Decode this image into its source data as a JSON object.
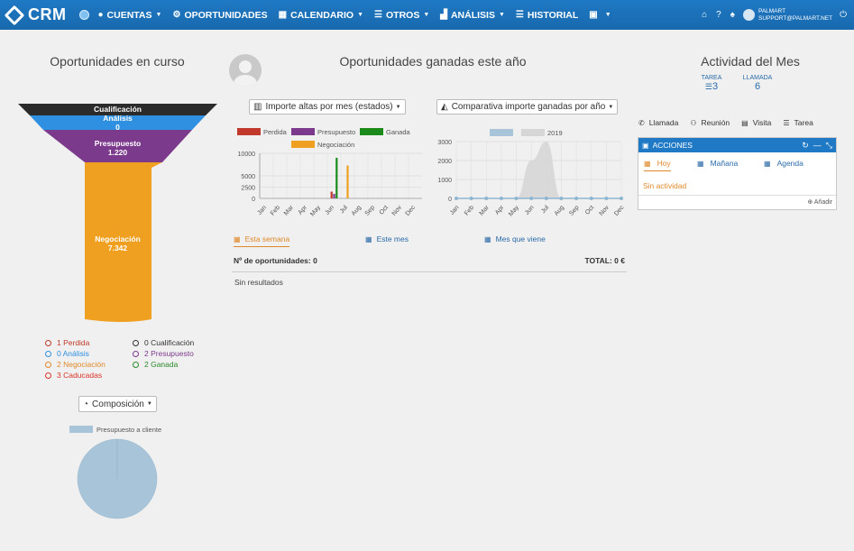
{
  "app": {
    "logo": "CRM"
  },
  "nav": {
    "items": [
      {
        "label": "CUENTAS",
        "icon": "user-icon",
        "caret": true
      },
      {
        "label": "OPORTUNIDADES",
        "icon": "gear-icon",
        "caret": false
      },
      {
        "label": "CALENDARIO",
        "icon": "calendar-icon",
        "caret": true
      },
      {
        "label": "OTROS",
        "icon": "list-icon",
        "caret": true
      },
      {
        "label": "ANÁLISIS",
        "icon": "chart-icon",
        "caret": true
      },
      {
        "label": "HISTORIAL",
        "icon": "list-icon",
        "caret": false
      }
    ],
    "user_name": "PALMART",
    "user_email": "SUPPORT@PALMART.NET"
  },
  "left": {
    "title": "Oportunidades en curso",
    "funnel": [
      {
        "name": "Cualificación",
        "value": "",
        "color": "#2b2b2b"
      },
      {
        "name": "Análisis",
        "value": "0",
        "color": "#2f8fe0"
      },
      {
        "name": "Presupuesto",
        "value": "1.220",
        "color": "#7c3a8c"
      },
      {
        "name": "Negociación",
        "value": "7.342",
        "color": "#f0a020"
      }
    ],
    "legend_left": [
      {
        "text": "1 Perdida",
        "color": "#c0392b"
      },
      {
        "text": "0 Análisis",
        "color": "#2f8fe0"
      },
      {
        "text": "2 Negociación",
        "color": "#e0892a"
      },
      {
        "text": "3 Caducadas",
        "color": "#d9342b"
      }
    ],
    "legend_right": [
      {
        "text": "0 Cualificación",
        "color": "#333333"
      },
      {
        "text": "2 Presupuesto",
        "color": "#7c3a8c"
      },
      {
        "text": "2 Ganada",
        "color": "#2a8a2a"
      }
    ],
    "composition_button": "Composición",
    "composition_legend": "Presupuesto a cliente",
    "pie": [
      {
        "name": "Presupuesto a cliente",
        "value": 1,
        "color": "#a8c4d8"
      }
    ]
  },
  "middle": {
    "title": "Oportunidades ganadas este año",
    "dropdown1": "Importe altas por mes (estados)",
    "dropdown2": "Comparativa importe ganadas por año",
    "tabs": [
      {
        "label": "Esta semana",
        "active": true
      },
      {
        "label": "Este mes",
        "active": false
      },
      {
        "label": "Mes que viene",
        "active": false
      }
    ],
    "count_label": "Nº de oportunidades: 0",
    "total_label": "TOTAL: 0 €",
    "empty_text": "Sin resultados"
  },
  "chart_data": [
    {
      "type": "bar",
      "categories": [
        "Jan",
        "Feb",
        "Mar",
        "Apr",
        "May",
        "Jun",
        "Jul",
        "Aug",
        "Sep",
        "Oct",
        "Nov",
        "Dec"
      ],
      "series": [
        {
          "name": "Perdida",
          "color": "#c0392b",
          "values": [
            0,
            0,
            0,
            0,
            0,
            1500,
            0,
            0,
            0,
            0,
            0,
            0
          ]
        },
        {
          "name": "Presupuesto",
          "color": "#7c3a8c",
          "values": [
            0,
            0,
            0,
            0,
            0,
            1000,
            0,
            0,
            0,
            0,
            0,
            0
          ]
        },
        {
          "name": "Ganada",
          "color": "#1a8a1a",
          "values": [
            0,
            0,
            0,
            0,
            0,
            9000,
            0,
            0,
            0,
            0,
            0,
            0
          ]
        },
        {
          "name": "Negociación",
          "color": "#f0a020",
          "values": [
            0,
            0,
            0,
            0,
            0,
            0,
            7300,
            0,
            0,
            0,
            0,
            0
          ]
        }
      ],
      "yticks": [
        0,
        2500,
        5000,
        10000
      ],
      "ytick_labels": [
        "0",
        "2500",
        "5000",
        "10000"
      ],
      "ylim": [
        0,
        10000
      ]
    },
    {
      "type": "area",
      "categories": [
        "Jan",
        "Feb",
        "Mar",
        "Apr",
        "May",
        "Jun",
        "Jul",
        "Aug",
        "Sep",
        "Oct",
        "Nov",
        "Dec"
      ],
      "series": [
        {
          "name": "",
          "color": "#a8c4d8",
          "values": [
            0,
            0,
            0,
            0,
            0,
            0,
            0,
            0,
            0,
            0,
            0,
            0
          ]
        },
        {
          "name": "2019",
          "color": "#d6d6d6",
          "values": [
            0,
            0,
            0,
            0,
            0,
            2000,
            3000,
            0,
            0,
            0,
            0,
            0
          ]
        }
      ],
      "yticks": [
        0,
        1000,
        2000,
        3000
      ],
      "ylim": [
        0,
        3000
      ]
    }
  ],
  "right": {
    "title": "Actividad del Mes",
    "stats": [
      {
        "label": "TAREA",
        "value": "3"
      },
      {
        "label": "LLAMADA",
        "value": "6"
      }
    ],
    "actions": [
      "Llamada",
      "Reunión",
      "Visita",
      "Tarea"
    ],
    "panel_title": "ACCIONES",
    "panel_tabs": [
      {
        "label": "Hoy",
        "active": true
      },
      {
        "label": "Mañana",
        "active": false
      },
      {
        "label": "Agenda",
        "active": false
      }
    ],
    "empty_text": "Sin actividad",
    "add_label": "Añadir"
  }
}
